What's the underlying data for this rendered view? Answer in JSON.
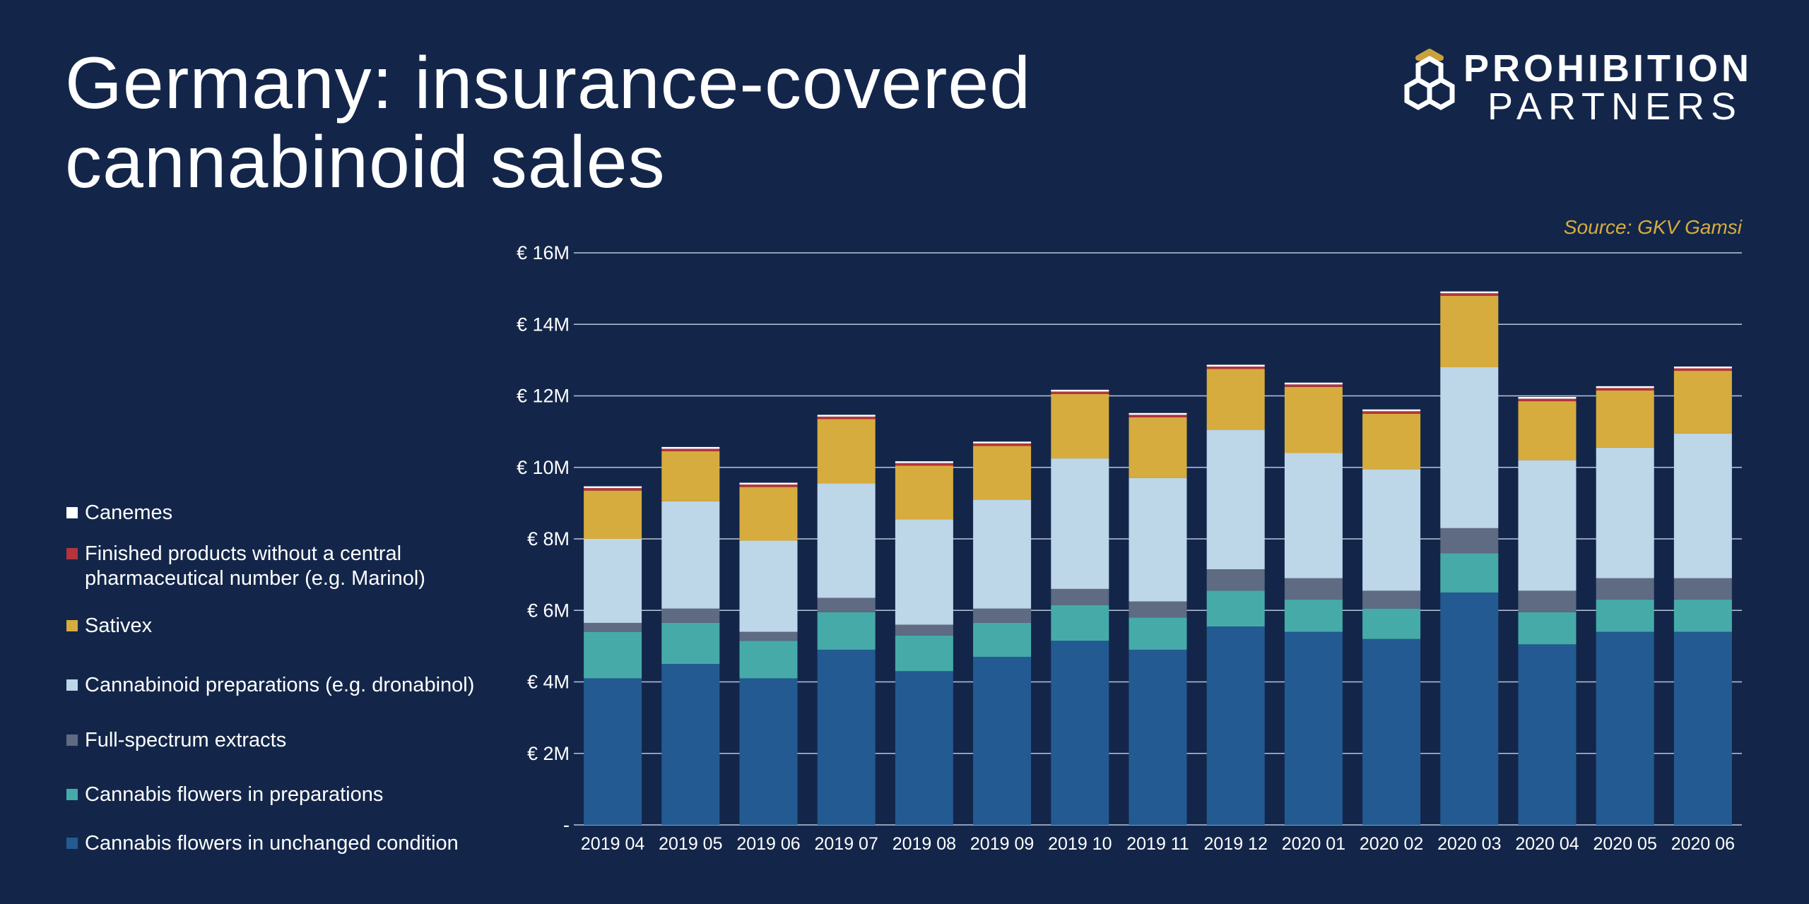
{
  "title_line1": "Germany: insurance-covered",
  "title_line2": "cannabinoid sales",
  "logo": {
    "line1": "PROHIBITION",
    "line2": "PARTNERS",
    "gold": "#c9a23c"
  },
  "source": "Source: GKV Gamsi",
  "chart_data": {
    "type": "bar",
    "stacked": true,
    "categories": [
      "2019 04",
      "2019 05",
      "2019 06",
      "2019 07",
      "2019 08",
      "2019 09",
      "2019 10",
      "2019 11",
      "2019 12",
      "2020 01",
      "2020 02",
      "2020 03",
      "2020 04",
      "2020 05",
      "2020 06"
    ],
    "ylim": [
      0,
      16
    ],
    "y_ticks": [
      0,
      2,
      4,
      6,
      8,
      10,
      12,
      14,
      16
    ],
    "y_tick_labels": [
      "-",
      "€ 2M",
      "€ 4M",
      "€ 6M",
      "€ 8M",
      "€ 10M",
      "€ 12M",
      "€ 14M",
      "€ 16M"
    ],
    "unit": "€ M",
    "grid": true,
    "legend_position": "left",
    "series": [
      {
        "name": "Cannabis flowers in unchanged condition",
        "color": "#235a91",
        "values": [
          4.1,
          4.5,
          4.1,
          4.9,
          4.3,
          4.7,
          5.15,
          4.9,
          5.55,
          5.4,
          5.2,
          6.5,
          5.05,
          5.4,
          5.4
        ]
      },
      {
        "name": "Cannabis flowers in preparations",
        "color": "#46aba8",
        "values": [
          1.3,
          1.15,
          1.05,
          1.05,
          1.0,
          0.95,
          1.0,
          0.9,
          1.0,
          0.9,
          0.85,
          1.1,
          0.9,
          0.9,
          0.9
        ]
      },
      {
        "name": "Full-spectrum extracts",
        "color": "#5f6a83",
        "values": [
          0.25,
          0.4,
          0.25,
          0.4,
          0.3,
          0.4,
          0.45,
          0.45,
          0.6,
          0.6,
          0.5,
          0.7,
          0.6,
          0.6,
          0.6
        ]
      },
      {
        "name": "Cannabinoid preparations (e.g. dronabinol)",
        "color": "#bdd6e8",
        "values": [
          2.35,
          3.0,
          2.55,
          3.2,
          2.95,
          3.05,
          3.65,
          3.45,
          3.9,
          3.5,
          3.4,
          4.5,
          3.65,
          3.65,
          4.05
        ]
      },
      {
        "name": "Sativex",
        "color": "#d6ac3e",
        "values": [
          1.35,
          1.4,
          1.5,
          1.8,
          1.5,
          1.5,
          1.8,
          1.7,
          1.7,
          1.85,
          1.55,
          2.0,
          1.65,
          1.6,
          1.75
        ]
      },
      {
        "name": "Finished products without a central pharmaceutical number (e.g. Marinol)",
        "color": "#b4343c",
        "legend_lines": [
          "Finished products without a central",
          "pharmaceutical number (e.g. Marinol)"
        ],
        "values": [
          0.07,
          0.07,
          0.07,
          0.07,
          0.07,
          0.07,
          0.07,
          0.07,
          0.07,
          0.07,
          0.07,
          0.07,
          0.07,
          0.07,
          0.07
        ]
      },
      {
        "name": "Canemes",
        "color": "#ffffff",
        "values": [
          0.05,
          0.05,
          0.05,
          0.05,
          0.05,
          0.05,
          0.05,
          0.05,
          0.05,
          0.05,
          0.05,
          0.05,
          0.05,
          0.05,
          0.05
        ]
      }
    ]
  }
}
